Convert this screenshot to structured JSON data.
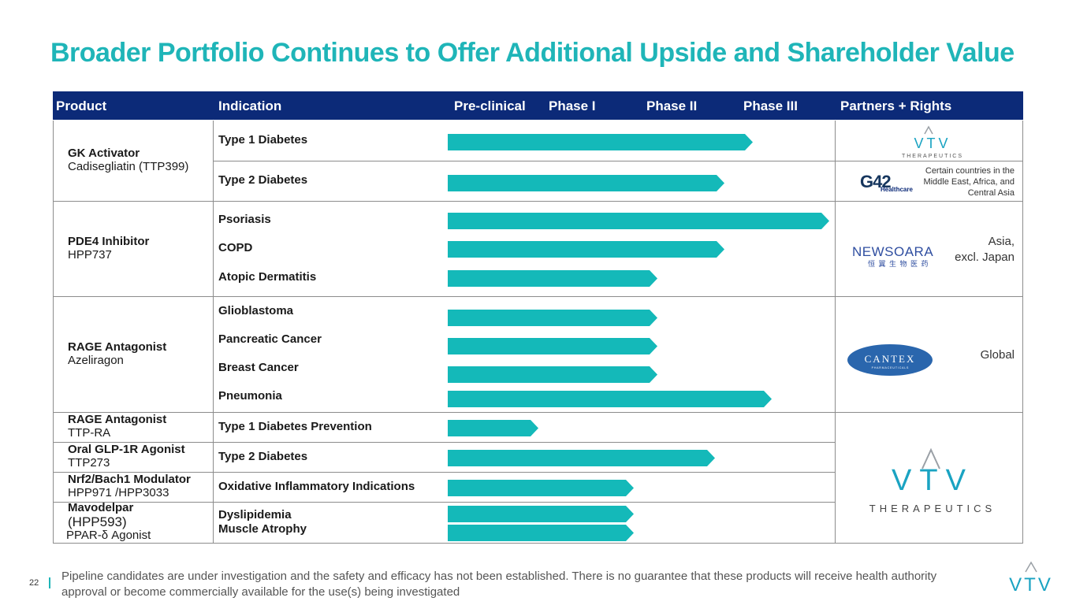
{
  "title": "Broader Portfolio Continues to Offer Additional Upside and Shareholder Value",
  "headers": {
    "product": "Product",
    "indication": "Indication",
    "preclinical": "Pre-clinical",
    "phase1": "Phase I",
    "phase2": "Phase II",
    "phase3": "Phase III",
    "partners": "Partners + Rights"
  },
  "products": [
    {
      "name": "GK Activator",
      "sub": "Cadisegliatin (TTP399)"
    },
    {
      "name": "PDE4 Inhibitor",
      "sub": "HPP737"
    },
    {
      "name": "RAGE Antagonist",
      "sub": "Azeliragon"
    },
    {
      "name": "RAGE Antagonist",
      "sub": "TTP-RA"
    },
    {
      "name": "Oral GLP-1R Agonist",
      "sub": "TTP273"
    },
    {
      "name": "Nrf2/Bach1 Modulator",
      "sub": "HPP971 /HPP3033"
    },
    {
      "name": "Mavodelpar",
      "sub": "(HPP593)",
      "sub2": "PPAR-δ Agonist"
    }
  ],
  "partners": {
    "g42_name": "G42",
    "g42_sub": "Healthcare",
    "g42_rights": "Certain countries in the Middle East, Africa, and Central Asia",
    "newsoara_name": "NEWSOARA",
    "newsoara_cn": "恒 翼 生 物 医 药",
    "newsoara_rights_1": "Asia,",
    "newsoara_rights_2": "excl. Japan",
    "cantex_name": "CANTEX",
    "cantex_sub": "P H A R M A C E U T I C A L S",
    "cantex_rights": "Global",
    "vtv_name": "VTV",
    "vtv_sub": "THERAPEUTICS"
  },
  "chart_data": {
    "type": "bar",
    "orientation": "horizontal",
    "title": "Broader Portfolio Continues to Offer Additional Upside and Shareholder Value",
    "stages": [
      "Pre-clinical",
      "Phase I",
      "Phase II",
      "Phase III"
    ],
    "xlim": [
      0,
      4
    ],
    "rows": [
      {
        "indication": "Type 1 Diabetes",
        "progress": 3.2
      },
      {
        "indication": "Type 2 Diabetes",
        "progress": 2.9
      },
      {
        "indication": "Psoriasis",
        "progress": 4.0
      },
      {
        "indication": "COPD",
        "progress": 2.9
      },
      {
        "indication": "Atopic Dermatitis",
        "progress": 2.2
      },
      {
        "indication": "Glioblastoma",
        "progress": 2.2
      },
      {
        "indication": "Pancreatic Cancer",
        "progress": 2.2
      },
      {
        "indication": "Breast Cancer",
        "progress": 2.2
      },
      {
        "indication": "Pneumonia",
        "progress": 3.4
      },
      {
        "indication": "Type 1 Diabetes Prevention",
        "progress": 0.95
      },
      {
        "indication": "Type 2 Diabetes",
        "progress": 2.8
      },
      {
        "indication": "Oxidative Inflammatory Indications",
        "progress": 1.95
      },
      {
        "indication": "Dyslipidemia",
        "progress": 1.95
      },
      {
        "indication": "Muscle Atrophy",
        "progress": 1.95
      }
    ]
  },
  "footer": {
    "page_number": "22",
    "disclaimer": "Pipeline candidates are under investigation and the safety and efficacy has not been established. There is no guarantee that these products will receive health authority approval or become commercially available for the use(s) being investigated"
  },
  "colors": {
    "title": "#1fb5b8",
    "header_bg": "#0c2a78",
    "bar": "#14b9b9",
    "vtv_logo": "#1aa3c2"
  }
}
